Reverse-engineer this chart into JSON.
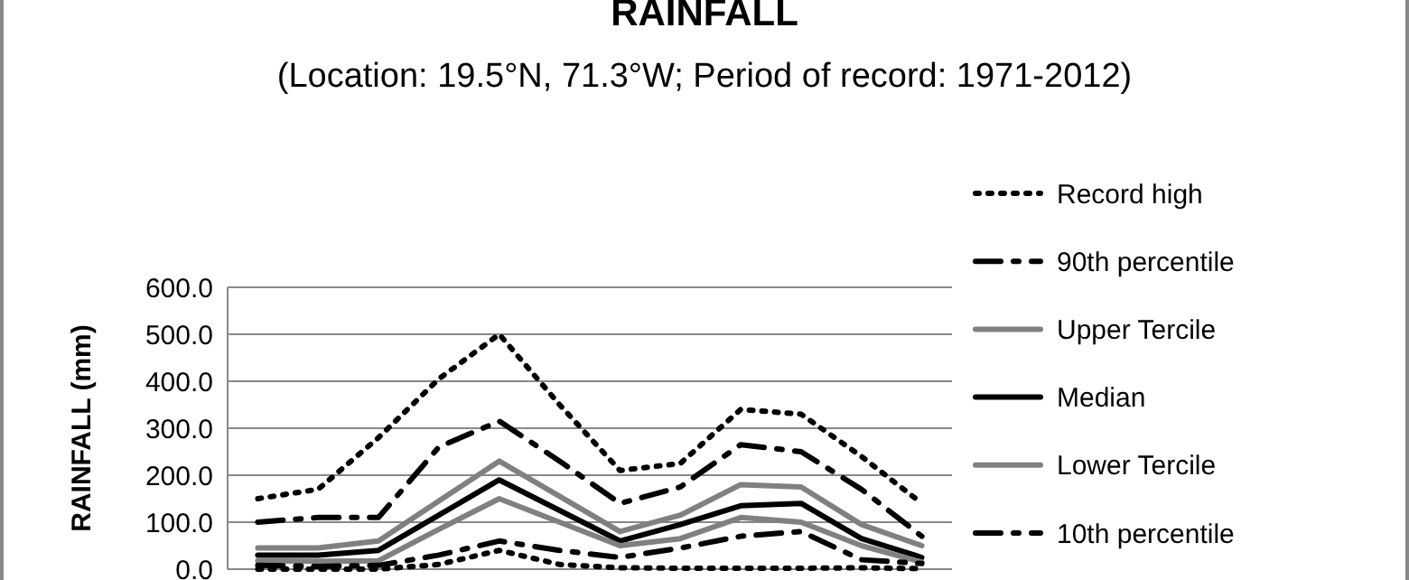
{
  "chart_data": {
    "type": "line",
    "title": "RAINFALL",
    "subtitle": "(Location: 19.5°N, 71.3°W; Period of record: 1971-2012)",
    "ylabel": "RAINFALL (mm)",
    "categories": [
      null,
      null,
      null,
      null,
      null,
      null,
      null,
      null,
      null,
      null,
      null,
      null
    ],
    "series": [
      {
        "name": "Record high",
        "color": "#000000",
        "line_style": "dotted",
        "values": [
          150,
          170,
          280,
          405,
          500,
          350,
          210,
          225,
          340,
          330,
          240,
          140
        ]
      },
      {
        "name": "90th percentile",
        "color": "#000000",
        "line_style": "dashed",
        "values": [
          100,
          110,
          110,
          260,
          315,
          230,
          140,
          175,
          265,
          250,
          170,
          70
        ]
      },
      {
        "name": "Upper Tercile",
        "color": "#808080",
        "line_style": "solid",
        "values": [
          45,
          45,
          60,
          145,
          230,
          155,
          80,
          115,
          180,
          175,
          95,
          50
        ]
      },
      {
        "name": "Median",
        "color": "#000000",
        "line_style": "solid",
        "values": [
          30,
          30,
          40,
          115,
          190,
          125,
          60,
          95,
          135,
          140,
          65,
          25
        ]
      },
      {
        "name": "Lower Tercile",
        "color": "#808080",
        "line_style": "solid",
        "values": [
          18,
          17,
          18,
          85,
          150,
          100,
          50,
          65,
          110,
          100,
          50,
          15
        ]
      },
      {
        "name": "10th percentile",
        "color": "#000000",
        "line_style": "dashed",
        "values": [
          8,
          6,
          8,
          30,
          60,
          40,
          25,
          45,
          70,
          80,
          20,
          12
        ]
      },
      {
        "color": "#000000",
        "line_style": "dotted",
        "values": [
          0,
          0,
          0,
          10,
          40,
          10,
          3,
          2,
          2,
          2,
          3,
          1
        ]
      }
    ],
    "ylim": [
      0,
      600
    ],
    "yticks": [
      {
        "value": 0,
        "label": "0.0"
      },
      {
        "value": 100,
        "label": "100.0"
      },
      {
        "value": 200,
        "label": "200.0"
      },
      {
        "value": 300,
        "label": "300.0"
      },
      {
        "value": 400,
        "label": "400.0"
      },
      {
        "value": 500,
        "label": "500.0"
      },
      {
        "value": 600,
        "label": "600.0"
      }
    ],
    "grid": "y",
    "legend": "right",
    "tick_labels": "y",
    "marker": "none"
  }
}
